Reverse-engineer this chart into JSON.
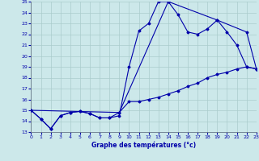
{
  "title": "Graphe des températures (°c)",
  "bg_color": "#cce8ea",
  "grid_color": "#aacccc",
  "line_color": "#0000aa",
  "ylim": [
    13,
    25
  ],
  "xlim": [
    0,
    23
  ],
  "yticks": [
    13,
    14,
    15,
    16,
    17,
    18,
    19,
    20,
    21,
    22,
    23,
    24,
    25
  ],
  "xticks": [
    0,
    1,
    2,
    3,
    4,
    5,
    6,
    7,
    8,
    9,
    10,
    11,
    12,
    13,
    14,
    15,
    16,
    17,
    18,
    19,
    20,
    21,
    22,
    23
  ],
  "series1_x": [
    0,
    1,
    2,
    3,
    4,
    5,
    6,
    7,
    8,
    9,
    10,
    11,
    12,
    13,
    14,
    15,
    16,
    17,
    18,
    19,
    20,
    21,
    22,
    23
  ],
  "series1_y": [
    15.0,
    14.2,
    13.3,
    14.5,
    14.8,
    14.9,
    14.7,
    14.3,
    14.3,
    14.5,
    19.0,
    22.3,
    23.0,
    25.0,
    25.0,
    23.8,
    22.2,
    22.0,
    22.5,
    23.3,
    22.2,
    21.0,
    19.0,
    18.8
  ],
  "series2_x": [
    0,
    1,
    2,
    3,
    4,
    5,
    6,
    7,
    8,
    9,
    10,
    11,
    12,
    13,
    14,
    15,
    16,
    17,
    18,
    19,
    20,
    21,
    22,
    23
  ],
  "series2_y": [
    15.0,
    14.2,
    13.3,
    14.5,
    14.8,
    14.9,
    14.7,
    14.3,
    14.3,
    14.8,
    15.8,
    15.8,
    16.0,
    16.2,
    16.5,
    16.8,
    17.2,
    17.5,
    18.0,
    18.3,
    18.5,
    18.8,
    19.0,
    18.8
  ],
  "series3_x": [
    0,
    9,
    14,
    19,
    22,
    23
  ],
  "series3_y": [
    15.0,
    14.8,
    25.0,
    23.3,
    22.2,
    18.8
  ],
  "tick_fontsize": 4.5,
  "xlabel_fontsize": 5.5,
  "marker_size": 1.5,
  "line_width": 0.8
}
